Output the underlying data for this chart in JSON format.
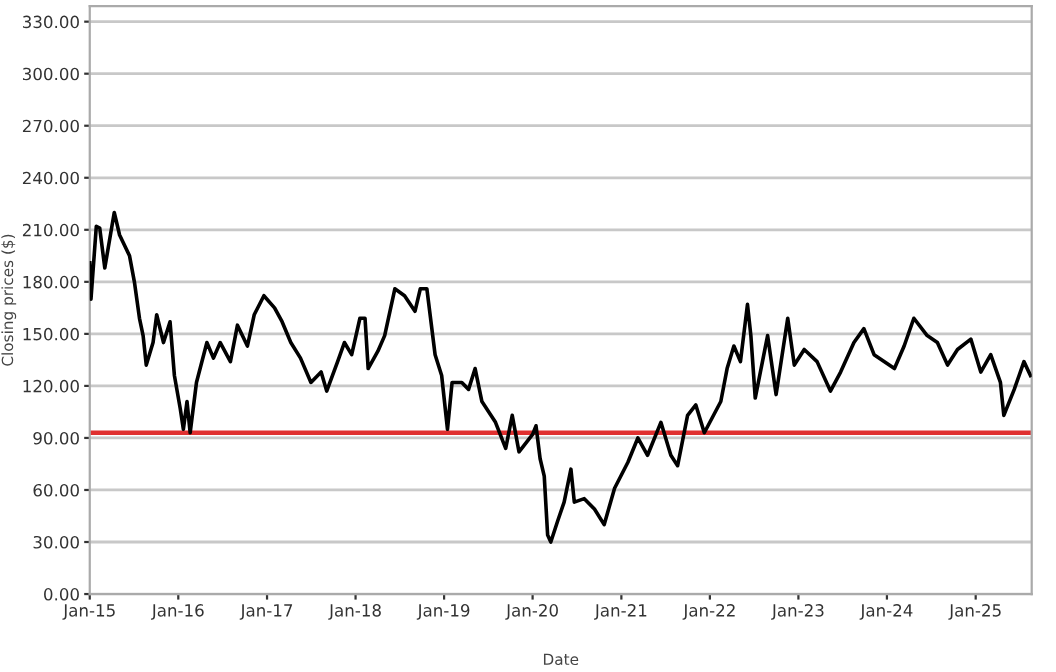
{
  "chart_data": {
    "type": "line",
    "xlabel": "Date",
    "ylabel": "Closing prices ($)",
    "x": [
      "2015-01-01",
      "2015-01-06",
      "2015-01-28",
      "2015-02-11",
      "2015-03-04",
      "2015-04-12",
      "2015-05-04",
      "2015-06-14",
      "2015-07-04",
      "2015-07-25",
      "2015-08-09",
      "2015-08-22",
      "2015-09-19",
      "2015-10-04",
      "2015-11-01",
      "2015-11-28",
      "2015-12-16",
      "2016-01-09",
      "2016-01-22",
      "2016-02-06",
      "2016-02-19",
      "2016-03-16",
      "2016-04-28",
      "2016-05-25",
      "2016-06-22",
      "2016-08-03",
      "2016-09-01",
      "2016-10-12",
      "2016-11-09",
      "2016-12-19",
      "2017-02-01",
      "2017-03-04",
      "2017-04-09",
      "2017-05-19",
      "2017-07-01",
      "2017-08-12",
      "2017-09-04",
      "2017-10-19",
      "2017-11-16",
      "2017-12-16",
      "2018-01-19",
      "2018-02-09",
      "2018-02-22",
      "2018-04-03",
      "2018-05-01",
      "2018-06-12",
      "2018-07-22",
      "2018-09-03",
      "2018-09-25",
      "2018-10-22",
      "2018-11-25",
      "2018-12-22",
      "2019-01-15",
      "2019-02-03",
      "2019-03-15",
      "2019-04-12",
      "2019-05-09",
      "2019-06-06",
      "2019-08-01",
      "2019-09-12",
      "2019-10-09",
      "2019-11-06",
      "2020-01-01",
      "2020-01-15",
      "2020-02-01",
      "2020-02-18",
      "2020-03-03",
      "2020-03-16",
      "2020-04-13",
      "2020-05-10",
      "2020-06-07",
      "2020-06-21",
      "2020-08-01",
      "2020-09-12",
      "2020-10-22",
      "2020-12-04",
      "2021-01-28",
      "2021-03-10",
      "2021-04-19",
      "2021-06-13",
      "2021-07-24",
      "2021-08-21",
      "2021-10-01",
      "2021-11-04",
      "2021-12-09",
      "2022-02-15",
      "2022-03-13",
      "2022-04-10",
      "2022-05-07",
      "2022-06-05",
      "2022-06-19",
      "2022-07-07",
      "2022-08-27",
      "2022-10-01",
      "2022-11-18",
      "2022-12-15",
      "2023-01-25",
      "2023-03-19",
      "2023-05-13",
      "2023-06-24",
      "2023-08-18",
      "2023-09-28",
      "2023-11-09",
      "2024-02-01",
      "2024-03-12",
      "2024-04-21",
      "2024-06-15",
      "2024-07-27",
      "2024-09-07",
      "2024-10-18",
      "2024-12-12",
      "2025-01-22",
      "2025-03-04",
      "2025-04-13",
      "2025-04-27",
      "2025-06-09",
      "2025-07-19",
      "2025-08-15"
    ],
    "series": [
      {
        "color": "#000000",
        "values": [
          191,
          170,
          212,
          211,
          188,
          220,
          207,
          195,
          180,
          159,
          149,
          132,
          145,
          161,
          145,
          157,
          126,
          107,
          95,
          111,
          93,
          122,
          145,
          136,
          145,
          134,
          155,
          143,
          161,
          172,
          165,
          157,
          145,
          136,
          122,
          128,
          117,
          134,
          145,
          138,
          159,
          159,
          130,
          140,
          149,
          176,
          172,
          163,
          176,
          176,
          138,
          126,
          95,
          122,
          122,
          118,
          130,
          111,
          99,
          84,
          103,
          82,
          92,
          97,
          78,
          68,
          34,
          30,
          42,
          53,
          72,
          53,
          55,
          49,
          40,
          61,
          76,
          90,
          80,
          99,
          80,
          74,
          103,
          109,
          93,
          111,
          130,
          143,
          134,
          167,
          149,
          113,
          149,
          115,
          159,
          132,
          141,
          134,
          117,
          128,
          145,
          153,
          138,
          130,
          143,
          159,
          149,
          145,
          132,
          141,
          147,
          128,
          138,
          122,
          103,
          118,
          134,
          126
        ]
      }
    ],
    "xlim": [
      "2015-01-01",
      "2025-08-20"
    ],
    "xticks": [
      {
        "value": "2015-01-01",
        "label": "Jan-15"
      },
      {
        "value": "2016-01-01",
        "label": "Jan-16"
      },
      {
        "value": "2017-01-01",
        "label": "Jan-17"
      },
      {
        "value": "2018-01-01",
        "label": "Jan-18"
      },
      {
        "value": "2019-01-01",
        "label": "Jan-19"
      },
      {
        "value": "2020-01-01",
        "label": "Jan-20"
      },
      {
        "value": "2021-01-01",
        "label": "Jan-21"
      },
      {
        "value": "2022-01-01",
        "label": "Jan-22"
      },
      {
        "value": "2023-01-01",
        "label": "Jan-23"
      },
      {
        "value": "2024-01-01",
        "label": "Jan-24"
      },
      {
        "value": "2025-01-01",
        "label": "Jan-25"
      }
    ],
    "ylim": [
      0,
      339
    ],
    "yticks": [
      {
        "value": 0,
        "label": "0.00"
      },
      {
        "value": 30,
        "label": "30.00"
      },
      {
        "value": 60,
        "label": "60.00"
      },
      {
        "value": 90,
        "label": "90.00"
      },
      {
        "value": 120,
        "label": "120.00"
      },
      {
        "value": 150,
        "label": "150.00"
      },
      {
        "value": 180,
        "label": "180.00"
      },
      {
        "value": 210,
        "label": "210.00"
      },
      {
        "value": 240,
        "label": "240.00"
      },
      {
        "value": 270,
        "label": "270.00"
      },
      {
        "value": 300,
        "label": "300.00"
      },
      {
        "value": 330,
        "label": "330.00"
      }
    ],
    "ref_lines": [
      {
        "axis": "y",
        "value": 93,
        "color": "#e03030"
      }
    ],
    "grid": "y",
    "legend": false
  }
}
